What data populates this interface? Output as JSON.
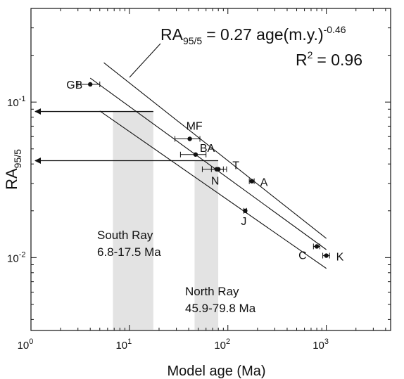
{
  "chart_data": {
    "type": "scatter",
    "xscale": "log",
    "yscale": "log",
    "xlim": [
      1,
      4500
    ],
    "ylim": [
      0.0034,
      0.4
    ],
    "xlabel": "Model age (Ma)",
    "ylabel_main": "RA",
    "ylabel_sub": "95/5",
    "xticks": [
      {
        "value": 1,
        "base": "10",
        "exp": "0"
      },
      {
        "value": 10,
        "base": "10",
        "exp": "1"
      },
      {
        "value": 100,
        "base": "10",
        "exp": "2"
      },
      {
        "value": 1000,
        "base": "10",
        "exp": "3"
      }
    ],
    "yticks": [
      {
        "value": 0.1,
        "base": "10",
        "exp": "-1"
      },
      {
        "value": 0.01,
        "base": "10",
        "exp": "-2"
      }
    ],
    "equation": {
      "lhs": "RA",
      "lhs_sub": "95/5",
      "rhs": "= 0.27 age(m.y.)",
      "rhs_sup": "-0.46"
    },
    "r2": {
      "lhs": "R",
      "sup": "2",
      "rhs": "= 0.96"
    },
    "points": [
      {
        "label": "GB",
        "x": 4.0,
        "y": 0.13,
        "xerr": [
          3.0,
          5.0
        ]
      },
      {
        "label": "MF",
        "x": 41,
        "y": 0.058,
        "xerr": [
          29,
          52
        ]
      },
      {
        "label": "BA",
        "x": 47,
        "y": 0.046,
        "xerr": [
          33,
          60
        ]
      },
      {
        "label": "T",
        "x": 80,
        "y": 0.037,
        "xerr": [
          68,
          97
        ]
      },
      {
        "label": "N",
        "x": 77,
        "y": 0.037,
        "xerr": [
          55,
          90
        ]
      },
      {
        "label": "A",
        "x": 175,
        "y": 0.031,
        "xerr": [
          165,
          185
        ]
      },
      {
        "label": "J",
        "x": 150,
        "y": 0.02,
        "xerr": [
          145,
          155
        ]
      },
      {
        "label": "C",
        "x": 800,
        "y": 0.0118,
        "xerr": [
          740,
          860
        ]
      },
      {
        "label": "K",
        "x": 1000,
        "y": 0.0103,
        "xerr": [
          920,
          1080
        ]
      }
    ],
    "fit": {
      "a": 0.27,
      "b": -0.46,
      "x_range": [
        4.0,
        1000
      ]
    },
    "fit_band_upper": {
      "a": 0.42,
      "b": -0.5,
      "x_range": [
        5.5,
        1000
      ]
    },
    "fit_band_lower": {
      "a": 0.178,
      "b": -0.44,
      "x_range": [
        5.0,
        1000
      ]
    },
    "shaded_ranges": [
      {
        "x0": 6.8,
        "x1": 17.5,
        "line1": "South Ray",
        "line2": "6.8-17.5 Ma"
      },
      {
        "x0": 45.9,
        "x1": 79.8,
        "line1": "North Ray",
        "line2": "45.9-79.8 Ma"
      }
    ],
    "arrows": [
      {
        "y": 0.087,
        "x_from": 17.5
      },
      {
        "y": 0.042,
        "x_from": 79.8
      }
    ]
  }
}
